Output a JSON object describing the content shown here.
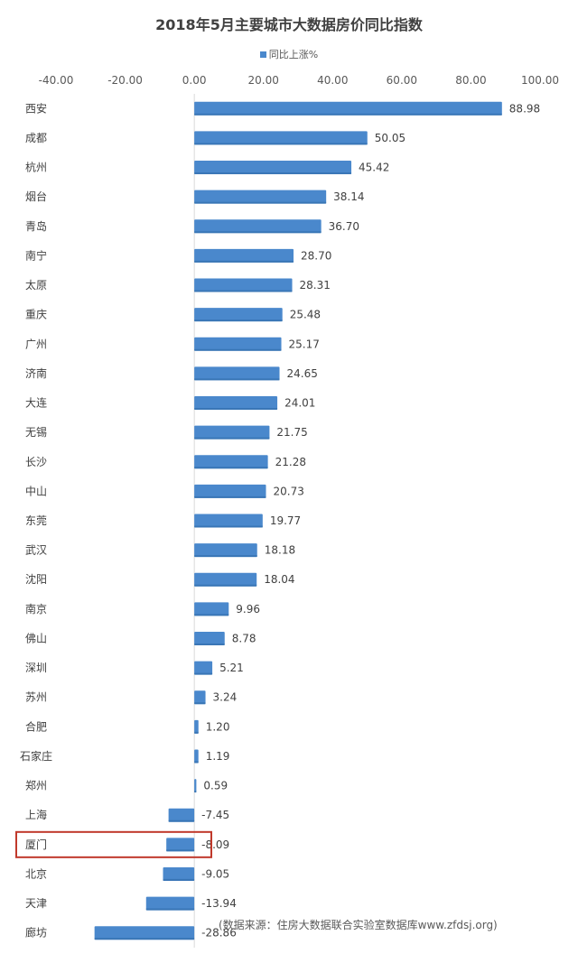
{
  "chart_data": {
    "type": "bar",
    "orientation": "horizontal",
    "title": "2018年5月主要城市大数据房价同比指数",
    "series": [
      {
        "name": "同比上涨%",
        "color": "#4a88cc",
        "values": [
          88.98,
          50.05,
          45.42,
          38.14,
          36.7,
          28.7,
          28.31,
          25.48,
          25.17,
          24.65,
          24.01,
          21.75,
          21.28,
          20.73,
          19.77,
          18.18,
          18.04,
          9.96,
          8.78,
          5.21,
          3.24,
          1.2,
          1.19,
          0.59,
          -7.45,
          -8.09,
          -9.05,
          -13.94,
          -28.86
        ],
        "value_labels": [
          "88.98",
          "50.05",
          "45.42",
          "38.14",
          "36.70",
          "28.70",
          "28.31",
          "25.48",
          "25.17",
          "24.65",
          "24.01",
          "21.75",
          "21.28",
          "20.73",
          "19.77",
          "18.18",
          "18.04",
          "9.96",
          "8.78",
          "5.21",
          "3.24",
          "1.20",
          "1.19",
          "0.59",
          "-7.45",
          "-8.09",
          "-9.05",
          "-13.94",
          "-28.86"
        ]
      }
    ],
    "categories": [
      "西安",
      "成都",
      "杭州",
      "烟台",
      "青岛",
      "南宁",
      "太原",
      "重庆",
      "广州",
      "济南",
      "大连",
      "无锡",
      "长沙",
      "中山",
      "东莞",
      "武汉",
      "沈阳",
      "南京",
      "佛山",
      "深圳",
      "苏州",
      "合肥",
      "石家庄",
      "郑州",
      "上海",
      "厦门",
      "北京",
      "天津",
      "廊坊"
    ],
    "xlim": [
      -40,
      100
    ],
    "x_ticks": [
      -40,
      -20,
      0,
      20,
      40,
      60,
      80,
      100
    ],
    "x_tick_labels": [
      "-40.00",
      "-20.00",
      "0.00",
      "20.00",
      "40.00",
      "60.00",
      "80.00",
      "100.00"
    ],
    "x_axis_position": "top",
    "grid": false,
    "legend_position": "top",
    "highlighted_category": "厦门",
    "highlight_color": "#c0392b",
    "source_note": "(数据来源：住房大数据联合实验室数据库www.zfdsj.org)"
  }
}
